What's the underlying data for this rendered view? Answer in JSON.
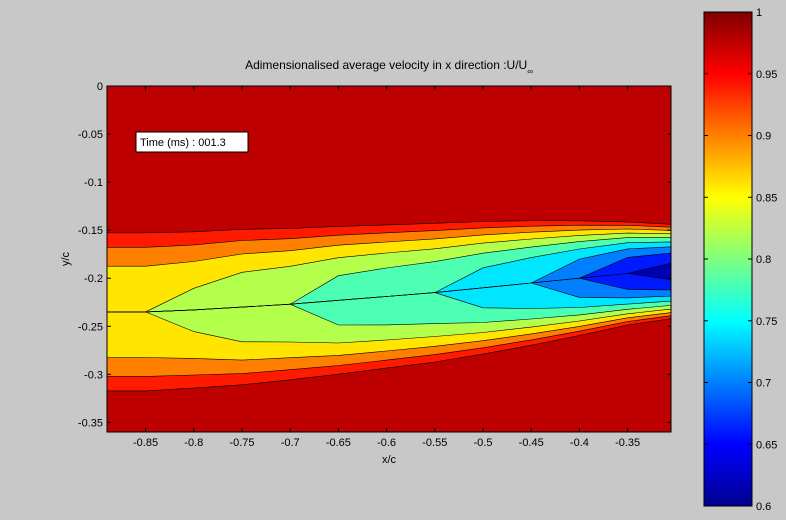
{
  "chart_data": {
    "type": "contour",
    "title": "Adimensionalised average velocity in x direction :U/U",
    "title_subscript": "∞",
    "xlabel": "x/c",
    "ylabel": "y/c",
    "xlim": [
      -0.89,
      -0.305
    ],
    "ylim": [
      -0.36,
      0
    ],
    "x_ticks": [
      "-0.85",
      "-0.8",
      "-0.75",
      "-0.7",
      "-0.65",
      "-0.6",
      "-0.55",
      "-0.5",
      "-0.45",
      "-0.4",
      "-0.35"
    ],
    "x_tick_values": [
      -0.85,
      -0.8,
      -0.75,
      -0.7,
      -0.65,
      -0.6,
      -0.55,
      -0.5,
      -0.45,
      -0.4,
      -0.35
    ],
    "y_ticks": [
      "0",
      "-0.05",
      "-0.1",
      "-0.15",
      "-0.2",
      "-0.25",
      "-0.3",
      "-0.35"
    ],
    "y_tick_values": [
      0,
      -0.05,
      -0.1,
      -0.15,
      -0.2,
      -0.25,
      -0.3,
      -0.35
    ],
    "colorbar": {
      "min": 0.6,
      "max": 1,
      "ticks": [
        "1",
        "0.95",
        "0.9",
        "0.85",
        "0.8",
        "0.75",
        "0.7",
        "0.65",
        "0.6"
      ],
      "tick_values": [
        1,
        0.95,
        0.9,
        0.85,
        0.8,
        0.75,
        0.7,
        0.65,
        0.6
      ],
      "colormap": "jet"
    },
    "annotation": "Time (ms) : 001.3",
    "contour_levels": [
      0.64,
      0.68,
      0.72,
      0.76,
      0.8,
      0.84,
      0.88,
      0.92,
      0.96
    ],
    "wake_profile": {
      "x": [
        -0.89,
        -0.85,
        -0.8,
        -0.75,
        -0.7,
        -0.65,
        -0.6,
        -0.55,
        -0.5,
        -0.45,
        -0.4,
        -0.35,
        -0.305
      ],
      "center_y": [
        -0.235,
        -0.235,
        -0.233,
        -0.23,
        -0.227,
        -0.223,
        -0.219,
        -0.215,
        -0.21,
        -0.205,
        -0.2,
        -0.195,
        -0.193
      ],
      "half_width": [
        0.095,
        0.095,
        0.093,
        0.091,
        0.088,
        0.085,
        0.082,
        0.079,
        0.075,
        0.07,
        0.064,
        0.057,
        0.052
      ],
      "min_velocity": [
        0.84,
        0.84,
        0.83,
        0.81,
        0.8,
        0.78,
        0.77,
        0.76,
        0.74,
        0.72,
        0.69,
        0.65,
        0.63
      ]
    }
  }
}
